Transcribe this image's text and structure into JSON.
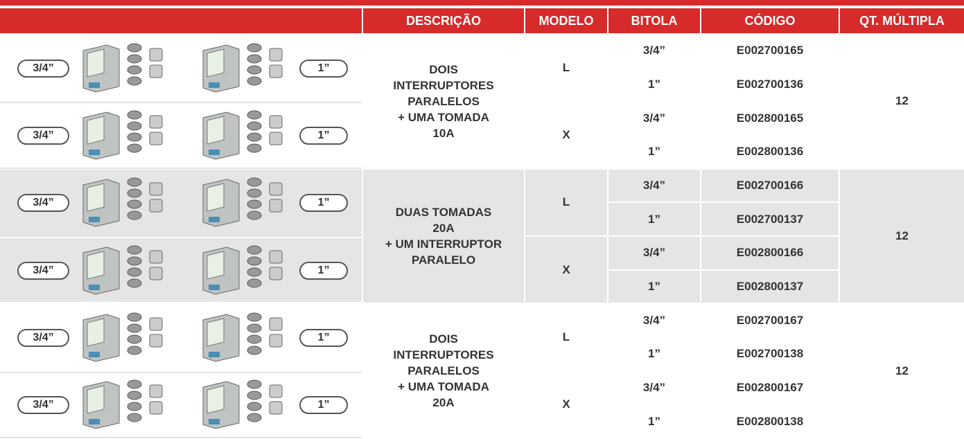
{
  "header": {
    "columns": [
      "DESCRIÇÃO",
      "MODELO",
      "BITOLA",
      "CÓDIGO",
      "QT. MÚLTIPLA"
    ]
  },
  "groups": [
    {
      "images": [
        {
          "left": "3/4”",
          "right": "1”"
        },
        {
          "left": "3/4”",
          "right": "1”"
        }
      ],
      "description": [
        "DOIS",
        "INTERRUPTORES",
        "PARALELOS",
        "+ UMA TOMADA",
        "10A"
      ],
      "models": [
        {
          "model": "L",
          "items": [
            {
              "bitola": "3/4”",
              "codigo": "E002700165"
            },
            {
              "bitola": "1”",
              "codigo": "E002700136"
            }
          ]
        },
        {
          "model": "X",
          "items": [
            {
              "bitola": "3/4”",
              "codigo": "E002800165"
            },
            {
              "bitola": "1”",
              "codigo": "E002800136"
            }
          ]
        }
      ],
      "quantity": 12
    },
    {
      "images": [
        {
          "left": "3/4”",
          "right": "1”"
        },
        {
          "left": "3/4”",
          "right": "1”"
        }
      ],
      "description": [
        "DUAS TOMADAS",
        "20A",
        "+ UM INTERRUPTOR",
        "PARALELO"
      ],
      "models": [
        {
          "model": "L",
          "items": [
            {
              "bitola": "3/4”",
              "codigo": "E002700166"
            },
            {
              "bitola": "1”",
              "codigo": "E002700137"
            }
          ]
        },
        {
          "model": "X",
          "items": [
            {
              "bitola": "3/4”",
              "codigo": "E002800166"
            },
            {
              "bitola": "1”",
              "codigo": "E002800137"
            }
          ]
        }
      ],
      "quantity": 12
    },
    {
      "images": [
        {
          "left": "3/4”",
          "right": "1”"
        },
        {
          "left": "3/4”",
          "right": "1”"
        }
      ],
      "description": [
        "DOIS",
        "INTERRUPTORES",
        "PARALELOS",
        "+ UMA TOMADA",
        "20A"
      ],
      "models": [
        {
          "model": "L",
          "items": [
            {
              "bitola": "3/4”",
              "codigo": "E002700167"
            },
            {
              "bitola": "1”",
              "codigo": "E002700138"
            }
          ]
        },
        {
          "model": "X",
          "items": [
            {
              "bitola": "3/4”",
              "codigo": "E002800167"
            },
            {
              "bitola": "1”",
              "codigo": "E002800138"
            }
          ]
        }
      ],
      "quantity": 12
    }
  ]
}
